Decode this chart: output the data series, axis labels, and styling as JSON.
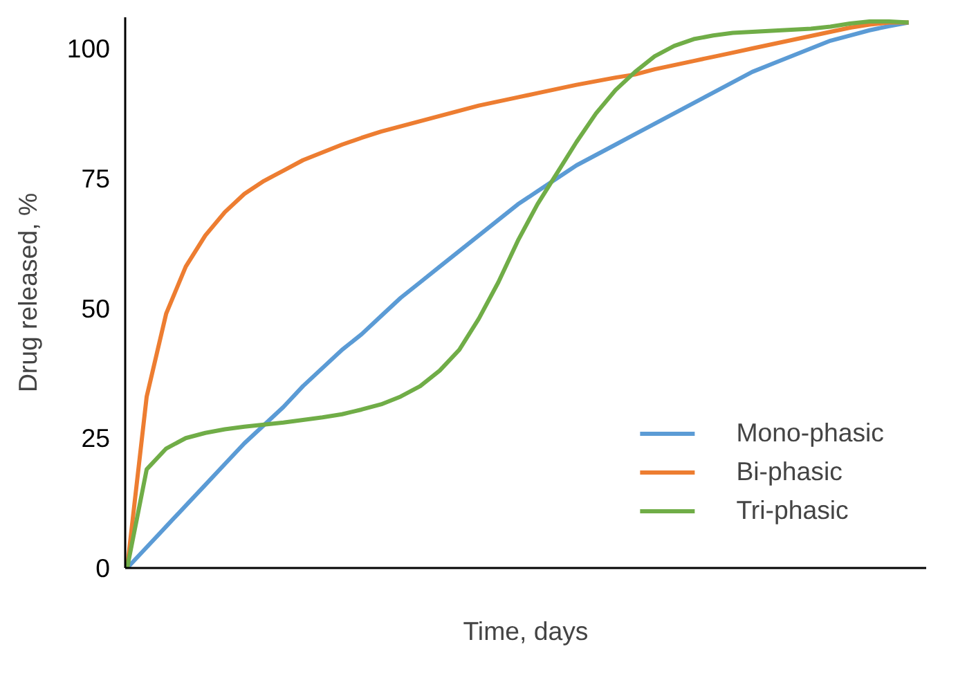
{
  "chart_data": {
    "type": "line",
    "xlabel": "Time, days",
    "ylabel": "Drug released, %",
    "categories": [
      null,
      null,
      null,
      null,
      null,
      null,
      null,
      null,
      null,
      null,
      null,
      null,
      null,
      null,
      null,
      null,
      null,
      null,
      null,
      null,
      null,
      null,
      null,
      null,
      null,
      null,
      null,
      null,
      null,
      null,
      null,
      null,
      null,
      null,
      null,
      null,
      null,
      null,
      null,
      null,
      null
    ],
    "series": [
      {
        "name": "Mono-phasic",
        "color": "#5b9bd5",
        "values": [
          0,
          4,
          8,
          12,
          16,
          20,
          24,
          27.5,
          31,
          35,
          38.5,
          42,
          45,
          48.5,
          52,
          55,
          58,
          61,
          64,
          67,
          70,
          72.5,
          75,
          77.5,
          79.5,
          81.5,
          83.5,
          85.5,
          87.5,
          89.5,
          91.5,
          93.5,
          95.5,
          97,
          98.5,
          100,
          101.5,
          102.5,
          103.5,
          104.3,
          105
        ]
      },
      {
        "name": "Bi-phasic",
        "color": "#ed7d31",
        "values": [
          0,
          33,
          49,
          58,
          64,
          68.5,
          72,
          74.5,
          76.5,
          78.5,
          80,
          81.5,
          82.8,
          84,
          85,
          86,
          87,
          88,
          89,
          89.8,
          90.6,
          91.4,
          92.2,
          93,
          93.7,
          94.4,
          95,
          96,
          96.8,
          97.6,
          98.4,
          99.2,
          100,
          100.8,
          101.6,
          102.4,
          103.2,
          104,
          104.6,
          105,
          105
        ]
      },
      {
        "name": "Tri-phasic",
        "color": "#70ad47",
        "values": [
          0,
          19,
          23,
          25,
          26,
          26.7,
          27.2,
          27.6,
          28,
          28.5,
          29,
          29.6,
          30.5,
          31.5,
          33,
          35,
          38,
          42,
          48,
          55,
          63,
          70,
          76,
          82,
          87.5,
          92,
          95.5,
          98.5,
          100.5,
          101.8,
          102.5,
          103,
          103.2,
          103.4,
          103.6,
          103.8,
          104.2,
          104.8,
          105.2,
          105.2,
          105
        ]
      }
    ],
    "ylim": [
      0,
      106
    ],
    "yticks": [
      0,
      25,
      50,
      75,
      100
    ],
    "grid": false,
    "legend": "bottom right",
    "tick_labels": "y",
    "marker": "none",
    "line_style": "solid"
  }
}
